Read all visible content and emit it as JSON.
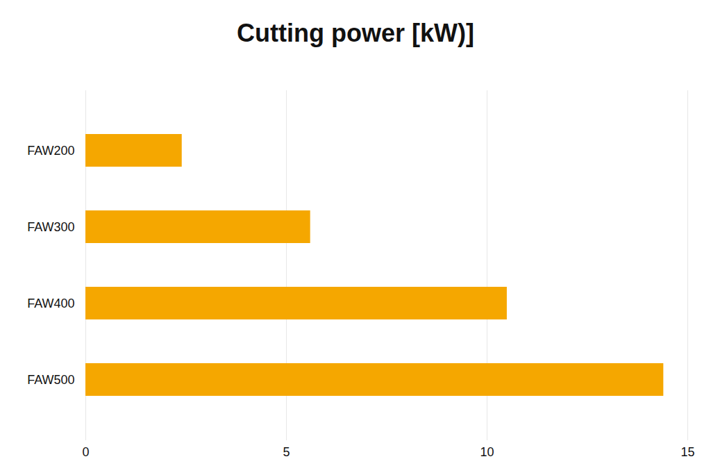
{
  "chart_data": {
    "type": "bar",
    "title": "Cutting power [kW)]",
    "orientation": "horizontal",
    "categories": [
      "FAW200",
      "FAW300",
      "FAW400",
      "FAW500"
    ],
    "values": [
      2.4,
      5.6,
      10.5,
      14.4
    ],
    "color": "#f5a700",
    "xlim": [
      0,
      15
    ],
    "xticks": [
      0,
      5,
      10,
      15
    ],
    "grid": true
  }
}
